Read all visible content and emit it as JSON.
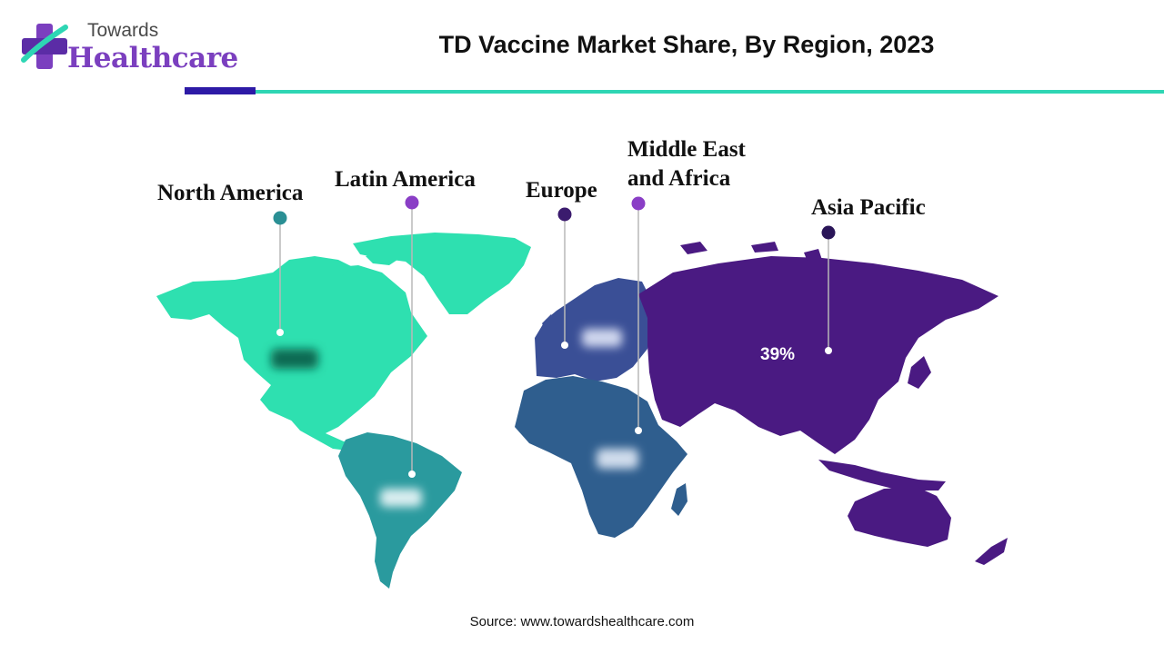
{
  "logo": {
    "top_text": "Towards",
    "bottom_text": "Healthcare"
  },
  "title": "TD Vaccine Market Share, By Region, 2023",
  "colors": {
    "north_america": "#2ee0b0",
    "latin_america": "#2a9a9e",
    "europe": "#3a4f96",
    "middle_east_africa": "#2f5e8e",
    "asia_pacific": "#4a1a82",
    "logo_accent": "#7b3fbf",
    "rule_dark": "#2d1aa6",
    "rule_teal": "#2ed6b4"
  },
  "regions": [
    {
      "name": "North America",
      "value_label": "",
      "dot_color": "#2a8f94"
    },
    {
      "name": "Latin America",
      "value_label": "",
      "dot_color": "#8a3ec6"
    },
    {
      "name": "Europe",
      "value_label": "",
      "dot_color": "#3b1b6e"
    },
    {
      "name": "Middle East and Africa",
      "name_line1": "Middle East",
      "name_line2": "and Africa",
      "value_label": "",
      "dot_color": "#8a3ec6"
    },
    {
      "name": "Asia Pacific",
      "value_label": "39%",
      "dot_color": "#2a1558"
    }
  ],
  "source": "Source: www.towardshealthcare.com"
}
